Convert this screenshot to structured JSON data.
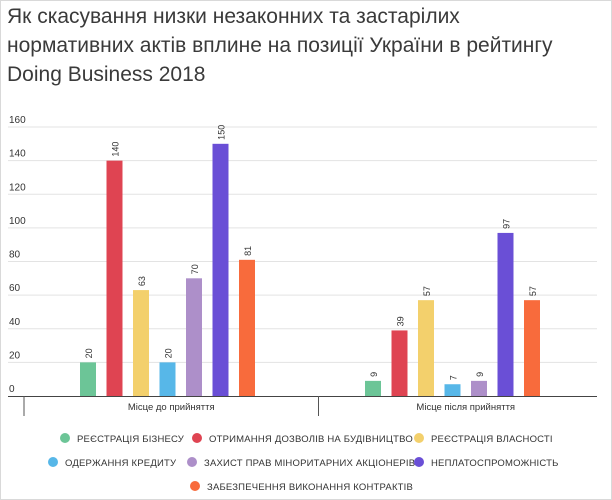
{
  "title": "Як скасування низки незаконних та застарілих нормативних актів вплине на позиції України в рейтингу Doing Business 2018",
  "chart_data": {
    "type": "bar",
    "categories": [
      "Місце до прийняття",
      "Місце після прийняття"
    ],
    "ylim": [
      0,
      160
    ],
    "yticks": [
      0,
      20,
      40,
      60,
      80,
      100,
      120,
      140,
      160
    ],
    "grid": true,
    "legend_position": "bottom",
    "series": [
      {
        "name": "РЕЄСТРАЦІЯ БІЗНЕСУ",
        "color": "#6cc597",
        "values": [
          20,
          9
        ],
        "labels": [
          "20",
          "9"
        ]
      },
      {
        "name": "ОТРИМАННЯ ДОЗВОЛІВ НА БУДІВНИЦТВО",
        "color": "#df4452",
        "values": [
          140,
          39
        ],
        "labels": [
          "140",
          "39"
        ]
      },
      {
        "name": "РЕЄСТРАЦІЯ ВЛАСНОСТІ",
        "color": "#f3d06c",
        "values": [
          63,
          57
        ],
        "labels": [
          "63",
          "57"
        ]
      },
      {
        "name": "ОДЕРЖАННЯ КРЕДИТУ",
        "color": "#57b7e8",
        "values": [
          20,
          7
        ],
        "labels": [
          "20",
          "7"
        ]
      },
      {
        "name": "ЗАХИСТ ПРАВ МІНОРИТАРНИХ АКЦІОНЕРІВ",
        "color": "#ad8fc9",
        "values": [
          70,
          9
        ],
        "labels": [
          "70",
          "9"
        ]
      },
      {
        "name": "НЕПЛАТОСПРОМОЖНІСТЬ",
        "color": "#6a4fd6",
        "values": [
          150,
          97
        ],
        "labels": [
          "150",
          "97"
        ]
      },
      {
        "name": "ЗАБЕЗПЕЧЕННЯ ВИКОНАННЯ КОНТРАКТІВ",
        "color": "#f86b3c",
        "values": [
          81,
          57
        ],
        "labels": [
          "81",
          "57"
        ]
      }
    ]
  }
}
